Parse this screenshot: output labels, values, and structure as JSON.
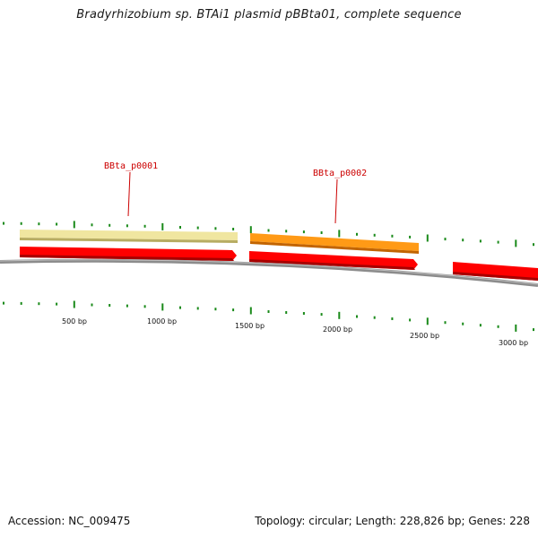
{
  "title": "Bradyrhizobium sp. BTAi1 plasmid pBBta01, complete sequence",
  "footer": {
    "accession": "Accession: NC_009475",
    "summary": "Topology: circular; Length: 228,826 bp; Genes: 228"
  },
  "features": {
    "genes": [
      {
        "name": "BBta_p0001",
        "color": "#f0e6a0"
      },
      {
        "name": "BBta_p0002",
        "color": "#ff9a16"
      }
    ],
    "cds_color": "#ff0000",
    "label_color": "#cc0000",
    "backbone_color": "#888888",
    "tick_color": "#1a8a1a"
  },
  "scale": {
    "labels": [
      "500 bp",
      "1000 bp",
      "1500 bp",
      "2000 bp",
      "2500 bp",
      "3000 bp"
    ]
  }
}
